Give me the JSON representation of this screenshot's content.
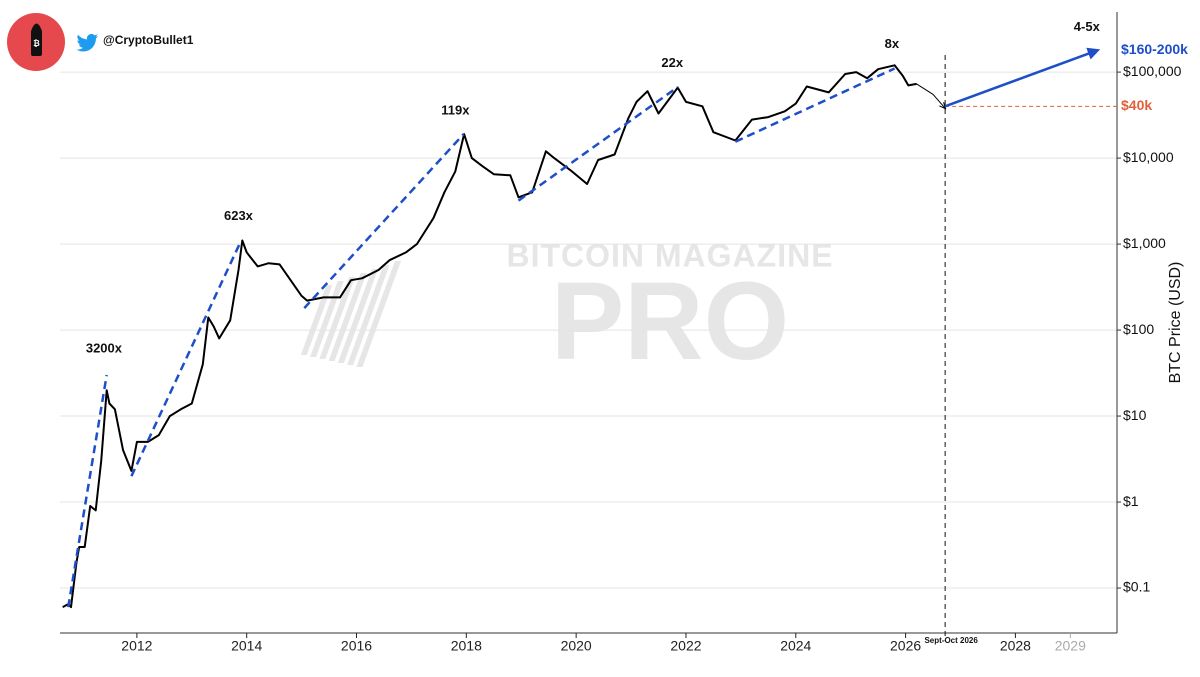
{
  "header": {
    "handle": "@CryptoBullet1"
  },
  "chart_data": {
    "type": "line",
    "log_scale": true,
    "grid": true,
    "watermark": [
      "BITCOIN MAGAZINE",
      "PRO"
    ],
    "y_axis_label": "BTC Price (USD)",
    "xlim": [
      2010.6,
      2029.85
    ],
    "ylim": [
      0.03,
      500000
    ],
    "xticks": [
      2012,
      2014,
      2016,
      2018,
      2020,
      2022,
      2024,
      2026,
      2028
    ],
    "xticks_future": [
      2029
    ],
    "yticks": [
      {
        "value": 0.1,
        "label": "$0.1"
      },
      {
        "value": 1,
        "label": "$1"
      },
      {
        "value": 10,
        "label": "$10"
      },
      {
        "value": 100,
        "label": "$100"
      },
      {
        "value": 1000,
        "label": "$1,000"
      },
      {
        "value": 10000,
        "label": "$10,000"
      },
      {
        "value": 100000,
        "label": "$100,000"
      }
    ],
    "series": [
      {
        "color": "#000000",
        "style": "solid",
        "width": 2,
        "x": [
          2010.65,
          2010.75,
          2010.8,
          2010.9,
          2010.95,
          2011.05,
          2011.15,
          2011.25,
          2011.35,
          2011.45,
          2011.5,
          2011.6,
          2011.75,
          2011.9,
          2012.0,
          2012.2,
          2012.4,
          2012.6,
          2012.8,
          2013.0,
          2013.2,
          2013.3,
          2013.4,
          2013.5,
          2013.7,
          2013.85,
          2013.92,
          2014.0,
          2014.2,
          2014.4,
          2014.6,
          2014.8,
          2015.0,
          2015.1,
          2015.4,
          2015.7,
          2015.9,
          2016.1,
          2016.4,
          2016.6,
          2016.9,
          2017.1,
          2017.4,
          2017.6,
          2017.8,
          2017.96,
          2018.1,
          2018.3,
          2018.5,
          2018.8,
          2018.95,
          2019.2,
          2019.45,
          2019.6,
          2019.9,
          2020.2,
          2020.4,
          2020.7,
          2020.95,
          2021.1,
          2021.3,
          2021.5,
          2021.85,
          2022.0,
          2022.3,
          2022.5,
          2022.9,
          2023.2,
          2023.5,
          2023.8,
          2024.0,
          2024.2,
          2024.6,
          2024.9,
          2025.1,
          2025.3,
          2025.5,
          2025.8,
          2025.95,
          2026.05,
          2026.2
        ],
        "values": [
          0.06,
          0.065,
          0.06,
          0.2,
          0.3,
          0.3,
          0.9,
          0.8,
          3,
          20,
          14,
          12,
          4,
          2.3,
          5,
          5,
          6,
          10,
          12,
          14,
          40,
          140,
          110,
          80,
          130,
          500,
          1100,
          800,
          550,
          600,
          580,
          380,
          250,
          220,
          240,
          240,
          380,
          400,
          500,
          650,
          800,
          1000,
          2000,
          4000,
          7000,
          19000,
          10000,
          8000,
          6500,
          6300,
          3500,
          4000,
          12000,
          10000,
          7200,
          5000,
          9500,
          11000,
          29000,
          45000,
          60000,
          33000,
          66000,
          45000,
          40000,
          20000,
          16000,
          28000,
          30000,
          35000,
          43000,
          68000,
          58000,
          95000,
          100000,
          85000,
          108000,
          120000,
          90000,
          70000,
          73000
        ]
      },
      {
        "color": "#1f4fc8",
        "style": "dashed",
        "width": 2.5,
        "x": [
          2010.75,
          2011.45,
          null,
          2011.9,
          2013.9,
          null,
          2015.05,
          2017.95,
          null,
          2018.95,
          2021.85,
          null,
          2022.9,
          2025.8
        ],
        "values": [
          0.06,
          30,
          null,
          2,
          1100,
          null,
          180,
          19000,
          null,
          3200,
          67000,
          null,
          15500,
          110000
        ]
      },
      {
        "color": "#000000",
        "style": "solid",
        "width": 1,
        "arrow": true,
        "x": [
          2026.2,
          2026.5,
          2026.72
        ],
        "values": [
          73000,
          55000,
          38000
        ]
      },
      {
        "color": "#1f4fc8",
        "style": "solid",
        "width": 2.5,
        "arrow": true,
        "x": [
          2026.72,
          2029.5
        ],
        "values": [
          40000,
          180000
        ]
      }
    ],
    "annotations": [
      {
        "text": "3200x",
        "x": 2011.4,
        "y": 60
      },
      {
        "text": "623x",
        "x": 2013.85,
        "y": 2100
      },
      {
        "text": "119x",
        "x": 2017.8,
        "y": 35000
      },
      {
        "text": "22x",
        "x": 2021.75,
        "y": 125000
      },
      {
        "text": "8x",
        "x": 2025.75,
        "y": 210000
      },
      {
        "text": "4-5x",
        "x": 2029.3,
        "y": 330000
      }
    ],
    "marker": {
      "label": "Sept-Oct 2026",
      "x": 2026.72
    },
    "targets": [
      {
        "label": "$160-200k",
        "value": 180000,
        "color": "#1f4fc8"
      },
      {
        "label": "$40k",
        "value": 40000,
        "color": "#e0603c",
        "line": true
      }
    ]
  }
}
